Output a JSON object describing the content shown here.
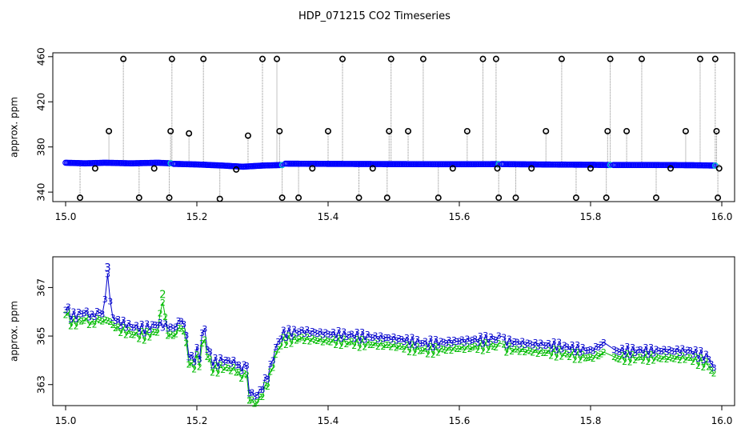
{
  "title": "HDP_071215  CO2 Timeseries",
  "colors": {
    "upper_points": "#0000ff",
    "upper_outliers": "#000000",
    "upper_cyan": "#00cccc",
    "upper_lines": "#888888",
    "lower_series_3": "#0000cc",
    "lower_series_2": "#00bb00",
    "background": "#ffffff",
    "axes": "#000000"
  },
  "chart_data": [
    {
      "type": "scatter",
      "ylabel": "approx. ppm",
      "xlabel": "",
      "xlim": [
        15.0,
        16.0
      ],
      "ylim": [
        333,
        462
      ],
      "x_ticks": [
        "15.0",
        "15.2",
        "15.4",
        "15.6",
        "15.8",
        "16.0"
      ],
      "y_ticks": [
        "340",
        "380",
        "420",
        "460"
      ],
      "baseline_segments": [
        {
          "x": [
            15.0,
            15.03,
            15.06,
            15.1,
            15.14,
            15.16
          ],
          "y": [
            366,
            365.5,
            366,
            365.5,
            366,
            365.5
          ]
        },
        {
          "x": [
            15.165,
            15.2,
            15.24,
            15.27,
            15.3,
            15.33
          ],
          "y": [
            365,
            364.5,
            363.5,
            362.5,
            363.5,
            364
          ]
        },
        {
          "x": [
            15.335,
            15.4,
            15.5,
            15.6,
            15.66
          ],
          "y": [
            365.2,
            365,
            364.8,
            364.7,
            364.8
          ]
        },
        {
          "x": [
            15.665,
            15.72,
            15.8,
            15.83
          ],
          "y": [
            364.8,
            364.5,
            364.2,
            364
          ]
        },
        {
          "x": [
            15.835,
            15.9,
            15.96,
            15.99
          ],
          "y": [
            364,
            364,
            363.8,
            363.5
          ]
        }
      ],
      "outliers": [
        {
          "x": 15.022,
          "y": 335
        },
        {
          "x": 15.045,
          "y": 361
        },
        {
          "x": 15.066,
          "y": 394
        },
        {
          "x": 15.088,
          "y": 458
        },
        {
          "x": 15.112,
          "y": 335
        },
        {
          "x": 15.135,
          "y": 361
        },
        {
          "x": 15.158,
          "y": 335
        },
        {
          "x": 15.16,
          "y": 394
        },
        {
          "x": 15.162,
          "y": 458
        },
        {
          "x": 15.188,
          "y": 392
        },
        {
          "x": 15.21,
          "y": 458
        },
        {
          "x": 15.235,
          "y": 334
        },
        {
          "x": 15.26,
          "y": 360
        },
        {
          "x": 15.278,
          "y": 390
        },
        {
          "x": 15.3,
          "y": 458
        },
        {
          "x": 15.322,
          "y": 458
        },
        {
          "x": 15.326,
          "y": 394
        },
        {
          "x": 15.33,
          "y": 335
        },
        {
          "x": 15.355,
          "y": 335
        },
        {
          "x": 15.376,
          "y": 361
        },
        {
          "x": 15.4,
          "y": 394
        },
        {
          "x": 15.422,
          "y": 458
        },
        {
          "x": 15.447,
          "y": 335
        },
        {
          "x": 15.468,
          "y": 361
        },
        {
          "x": 15.49,
          "y": 335
        },
        {
          "x": 15.493,
          "y": 394
        },
        {
          "x": 15.496,
          "y": 458
        },
        {
          "x": 15.522,
          "y": 394
        },
        {
          "x": 15.545,
          "y": 458
        },
        {
          "x": 15.568,
          "y": 335
        },
        {
          "x": 15.59,
          "y": 361
        },
        {
          "x": 15.612,
          "y": 394
        },
        {
          "x": 15.636,
          "y": 458
        },
        {
          "x": 15.656,
          "y": 458
        },
        {
          "x": 15.658,
          "y": 361
        },
        {
          "x": 15.66,
          "y": 335
        },
        {
          "x": 15.686,
          "y": 335
        },
        {
          "x": 15.71,
          "y": 361
        },
        {
          "x": 15.732,
          "y": 394
        },
        {
          "x": 15.756,
          "y": 458
        },
        {
          "x": 15.778,
          "y": 335
        },
        {
          "x": 15.8,
          "y": 361
        },
        {
          "x": 15.824,
          "y": 335
        },
        {
          "x": 15.826,
          "y": 394
        },
        {
          "x": 15.83,
          "y": 458
        },
        {
          "x": 15.855,
          "y": 394
        },
        {
          "x": 15.878,
          "y": 458
        },
        {
          "x": 15.9,
          "y": 335
        },
        {
          "x": 15.922,
          "y": 361
        },
        {
          "x": 15.945,
          "y": 394
        },
        {
          "x": 15.967,
          "y": 458
        },
        {
          "x": 15.99,
          "y": 458
        },
        {
          "x": 15.992,
          "y": 394
        },
        {
          "x": 15.994,
          "y": 335
        },
        {
          "x": 15.996,
          "y": 361
        }
      ]
    },
    {
      "type": "line",
      "ylabel": "approx. ppm",
      "xlabel": "",
      "xlim": [
        15.0,
        16.0
      ],
      "ylim": [
        362.2,
        368.2
      ],
      "x_ticks": [
        "15.0",
        "15.2",
        "15.4",
        "15.6",
        "15.8",
        "16.0"
      ],
      "y_ticks": [
        "363",
        "365",
        "367"
      ],
      "point_labels": [
        "3",
        "2"
      ],
      "series": [
        {
          "label": "3",
          "x": [
            15.0,
            15.01,
            15.02,
            15.03,
            15.04,
            15.05,
            15.058,
            15.064,
            15.07,
            15.08,
            15.1,
            15.12,
            15.14,
            15.155,
            15.165,
            15.175,
            15.182,
            15.188,
            15.195,
            15.2,
            15.205,
            15.21,
            15.216,
            15.225,
            15.24,
            15.26,
            15.268,
            15.275,
            15.28,
            15.29,
            15.3,
            15.31,
            15.32,
            15.33,
            15.36,
            15.4,
            15.45,
            15.5,
            15.55,
            15.6,
            15.66,
            15.665,
            15.7,
            15.75,
            15.8,
            15.82,
            15.835,
            15.87,
            15.9,
            15.95,
            15.98,
            15.99
          ],
          "y": [
            366.2,
            365.8,
            365.9,
            366.0,
            365.8,
            366.0,
            365.9,
            367.6,
            365.8,
            365.6,
            365.4,
            365.3,
            365.5,
            365.4,
            365.3,
            365.7,
            365.4,
            364.2,
            364.0,
            364.4,
            364.1,
            365.7,
            364.5,
            363.9,
            364.0,
            363.9,
            363.6,
            364.0,
            362.7,
            362.5,
            362.9,
            363.5,
            364.5,
            365.1,
            365.2,
            365.1,
            365.0,
            364.9,
            364.7,
            364.8,
            364.9,
            364.8,
            364.7,
            364.6,
            364.4,
            364.7,
            364.4,
            364.4,
            364.4,
            364.4,
            364.1,
            363.5
          ]
        },
        {
          "label": "2",
          "x": [
            15.0,
            15.01,
            15.02,
            15.03,
            15.04,
            15.05,
            15.058,
            15.064,
            15.07,
            15.08,
            15.1,
            15.12,
            15.14,
            15.148,
            15.155,
            15.165,
            15.175,
            15.182,
            15.188,
            15.195,
            15.2,
            15.205,
            15.21,
            15.216,
            15.225,
            15.24,
            15.26,
            15.268,
            15.275,
            15.28,
            15.29,
            15.3,
            15.31,
            15.32,
            15.33,
            15.36,
            15.4,
            15.45,
            15.5,
            15.55,
            15.6,
            15.66,
            15.665,
            15.7,
            15.75,
            15.8,
            15.82,
            15.835,
            15.87,
            15.9,
            15.95,
            15.98,
            15.99
          ],
          "y": [
            366.0,
            365.5,
            365.6,
            365.7,
            365.5,
            365.7,
            365.6,
            365.7,
            365.5,
            365.3,
            365.1,
            365.0,
            365.2,
            366.5,
            365.1,
            365.0,
            365.4,
            365.1,
            363.9,
            363.7,
            364.1,
            363.8,
            365.2,
            364.2,
            363.6,
            363.7,
            363.6,
            363.3,
            363.6,
            362.4,
            362.2,
            362.6,
            363.2,
            364.2,
            364.8,
            364.9,
            364.8,
            364.7,
            364.6,
            364.4,
            364.5,
            364.6,
            364.5,
            364.4,
            364.3,
            364.1,
            364.3,
            364.1,
            364.1,
            364.1,
            364.1,
            363.8,
            363.3
          ]
        }
      ]
    }
  ]
}
